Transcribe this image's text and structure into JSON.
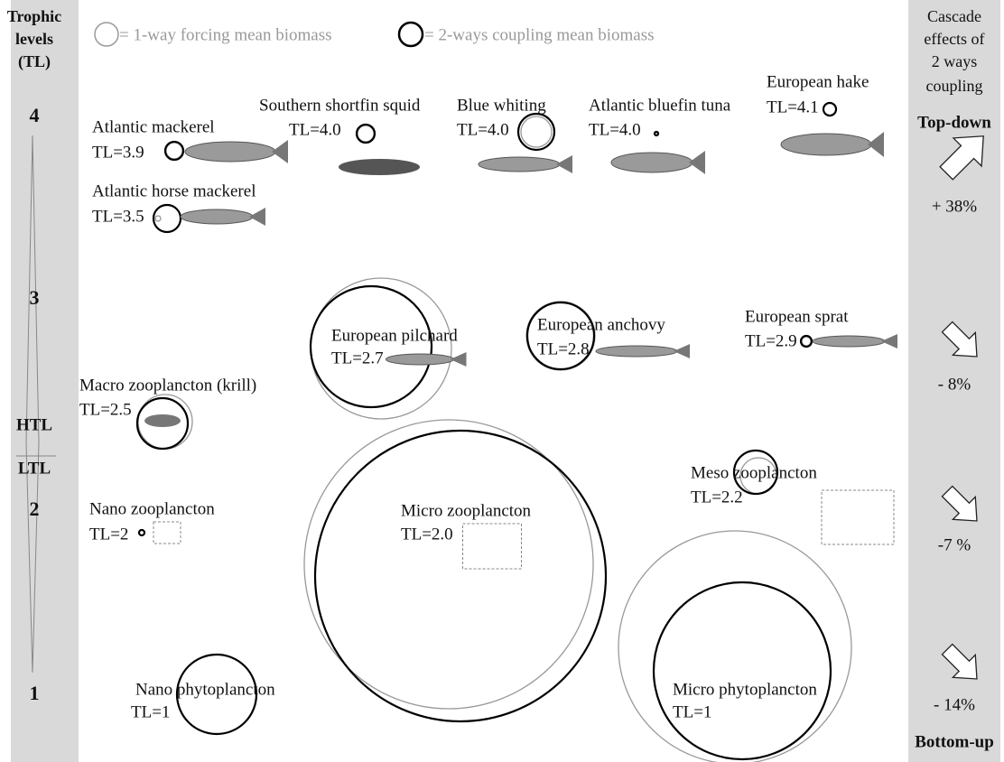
{
  "left_panel": {
    "title": [
      "Trophic",
      "levels",
      "(TL)"
    ],
    "levels": [
      "4",
      "3",
      "2",
      "1"
    ],
    "htl": "HTL",
    "ltl": "LTL"
  },
  "legend": {
    "one_way": "= 1-way forcing mean biomass",
    "two_ways": "= 2-ways coupling mean biomass"
  },
  "nodes": [
    {
      "name": "Atlantic mackerel",
      "tl": "TL=3.9"
    },
    {
      "name": "Atlantic horse mackerel",
      "tl": "TL=3.5"
    },
    {
      "name": "Southern shortfin squid",
      "tl": "TL=4.0"
    },
    {
      "name": "Blue whiting",
      "tl": "TL=4.0"
    },
    {
      "name": "Atlantic bluefin tuna",
      "tl": "TL=4.0"
    },
    {
      "name": "European hake",
      "tl": "TL=4.1"
    },
    {
      "name": "European pilchard",
      "tl": "TL=2.7"
    },
    {
      "name": "European anchovy",
      "tl": "TL=2.8"
    },
    {
      "name": "European sprat",
      "tl": "TL=2.9"
    },
    {
      "name": "Macro zooplancton (krill)",
      "tl": "TL=2.5"
    },
    {
      "name": "Meso zooplancton",
      "tl": "TL=2.2"
    },
    {
      "name": "Nano zooplancton",
      "tl": "TL=2"
    },
    {
      "name": "Micro zooplancton",
      "tl": "TL=2.0"
    },
    {
      "name": "Nano phytoplancton",
      "tl": "TL=1"
    },
    {
      "name": "Micro phytoplancton",
      "tl": "TL=1"
    }
  ],
  "right_panel": {
    "title": [
      "Cascade",
      "effects of",
      "2 ways",
      "coupling"
    ],
    "top_down": "Top-down",
    "bottom_up": "Bottom-up",
    "effects": [
      "+ 38%",
      "- 8%",
      "-7 %",
      "- 14%"
    ]
  }
}
